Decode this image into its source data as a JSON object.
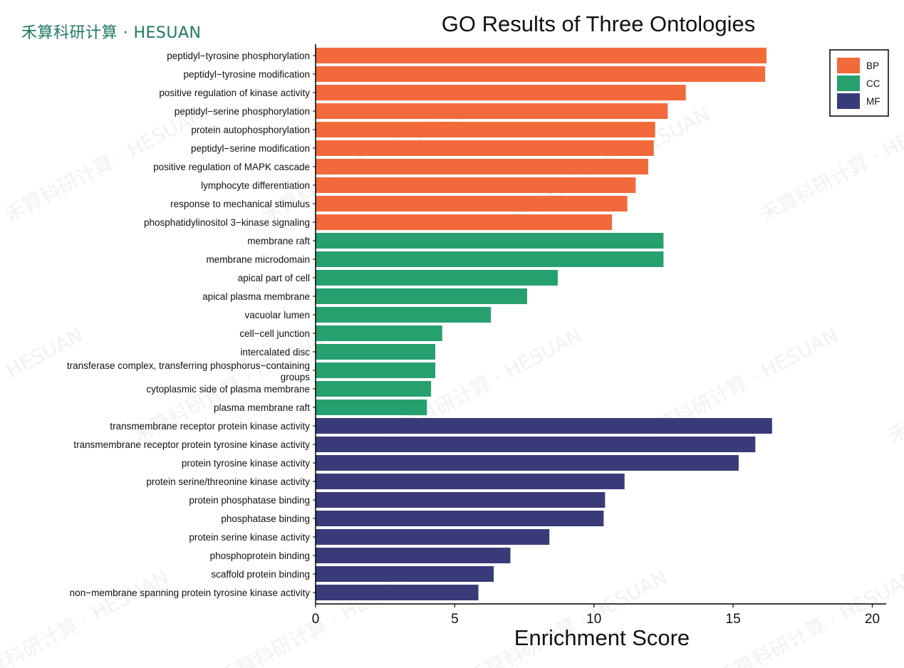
{
  "brand": "禾算科研计算 · HESUAN",
  "watermark_text": "禾算科研计算 · HESUAN",
  "chart_data": {
    "type": "bar",
    "orientation": "horizontal",
    "title": "GO Results of Three Ontologies",
    "xlabel": "Enrichment Score",
    "ylabel": "",
    "xlim": [
      0,
      20.5
    ],
    "xticks": [
      0,
      5,
      10,
      15,
      20
    ],
    "grid": false,
    "legend_position": "top-right",
    "colors": {
      "BP": "#f26a3b",
      "CC": "#26a06f",
      "MF": "#393b79"
    },
    "legend": [
      "BP",
      "CC",
      "MF"
    ],
    "bars": [
      {
        "term": "peptidyl-tyrosine phosphorylation",
        "value": 16.2,
        "group": "BP"
      },
      {
        "term": "peptidyl-tyrosine modification",
        "value": 16.15,
        "group": "BP"
      },
      {
        "term": "positive regulation of kinase activity",
        "value": 13.3,
        "group": "BP"
      },
      {
        "term": "peptidyl-serine phosphorylation",
        "value": 12.65,
        "group": "BP"
      },
      {
        "term": "protein autophosphorylation",
        "value": 12.2,
        "group": "BP"
      },
      {
        "term": "peptidyl-serine modification",
        "value": 12.15,
        "group": "BP"
      },
      {
        "term": "positive regulation of MAPK cascade",
        "value": 11.95,
        "group": "BP"
      },
      {
        "term": "lymphocyte differentiation",
        "value": 11.5,
        "group": "BP"
      },
      {
        "term": "response to mechanical stimulus",
        "value": 11.2,
        "group": "BP"
      },
      {
        "term": "phosphatidylinositol 3-kinase signaling",
        "value": 10.65,
        "group": "BP"
      },
      {
        "term": "membrane raft",
        "value": 12.5,
        "group": "CC"
      },
      {
        "term": "membrane microdomain",
        "value": 12.5,
        "group": "CC"
      },
      {
        "term": "apical part of cell",
        "value": 8.7,
        "group": "CC"
      },
      {
        "term": "apical plasma membrane",
        "value": 7.6,
        "group": "CC"
      },
      {
        "term": "vacuolar lumen",
        "value": 6.3,
        "group": "CC"
      },
      {
        "term": "cell-cell junction",
        "value": 4.55,
        "group": "CC"
      },
      {
        "term": "intercalated disc",
        "value": 4.3,
        "group": "CC"
      },
      {
        "term": "transferase complex, transferring phosphorus-containing groups",
        "value": 4.3,
        "group": "CC"
      },
      {
        "term": "cytoplasmic side of plasma membrane",
        "value": 4.15,
        "group": "CC"
      },
      {
        "term": "plasma membrane raft",
        "value": 4.0,
        "group": "CC"
      },
      {
        "term": "transmembrane receptor protein kinase activity",
        "value": 16.4,
        "group": "MF"
      },
      {
        "term": "transmembrane receptor protein tyrosine kinase activity",
        "value": 15.8,
        "group": "MF"
      },
      {
        "term": "protein tyrosine kinase activity",
        "value": 15.2,
        "group": "MF"
      },
      {
        "term": "protein serine/threonine kinase activity",
        "value": 11.1,
        "group": "MF"
      },
      {
        "term": "protein phosphatase binding",
        "value": 10.4,
        "group": "MF"
      },
      {
        "term": "phosphatase binding",
        "value": 10.35,
        "group": "MF"
      },
      {
        "term": "protein serine kinase activity",
        "value": 8.4,
        "group": "MF"
      },
      {
        "term": "phosphoprotein binding",
        "value": 7.0,
        "group": "MF"
      },
      {
        "term": "scaffold protein binding",
        "value": 6.4,
        "group": "MF"
      },
      {
        "term": "non-membrane spanning protein tyrosine kinase activity",
        "value": 5.85,
        "group": "MF"
      }
    ]
  }
}
